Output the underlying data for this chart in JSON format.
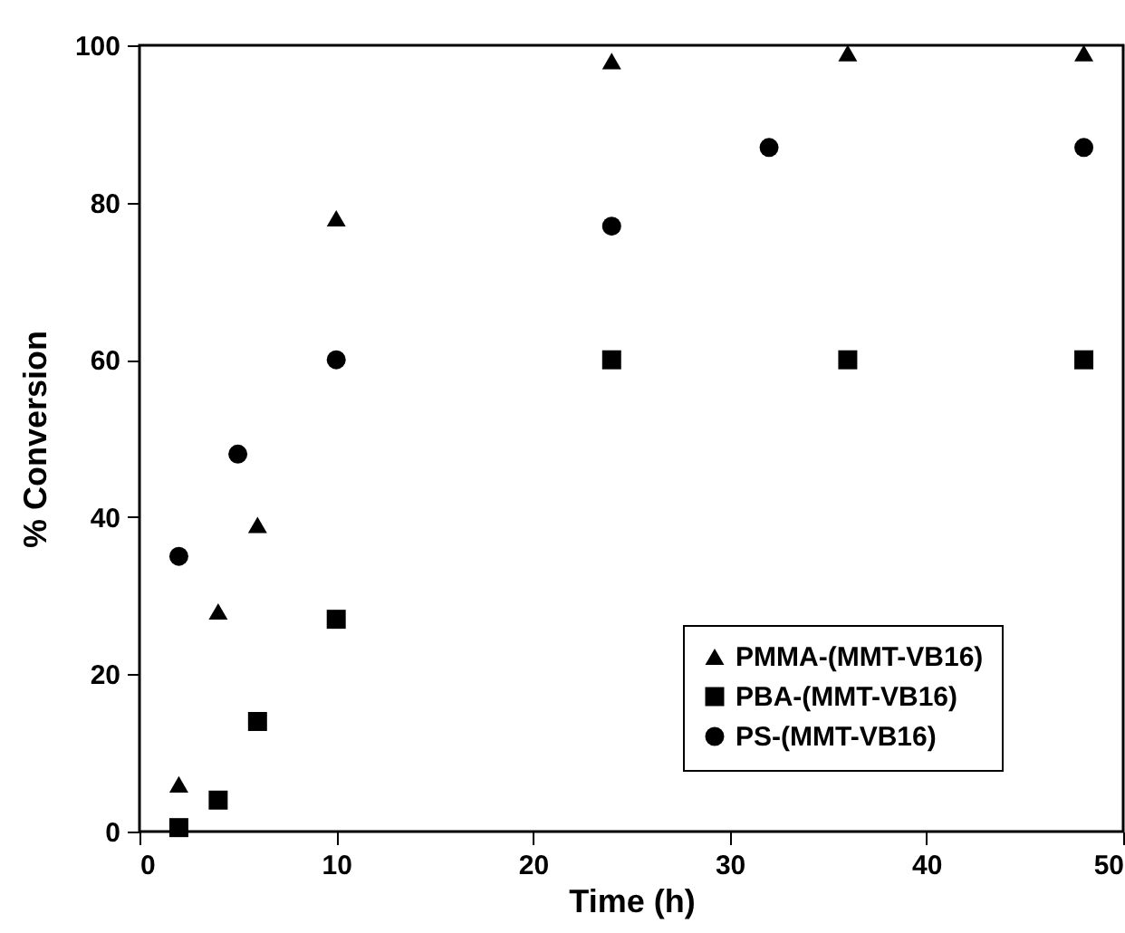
{
  "chart_data": {
    "type": "scatter",
    "xlabel": "Time (h)",
    "ylabel": "% Conversion",
    "xlim": [
      0,
      50
    ],
    "xticks": [
      0,
      10,
      20,
      30,
      40,
      50
    ],
    "ylim": [
      0,
      100
    ],
    "yticks": [
      0,
      20,
      40,
      60,
      80,
      100
    ],
    "grid": false,
    "legend": "bottom right",
    "series": [
      {
        "name": "PMMA-(MMT-VB16)",
        "color": "#000000",
        "marker": "triangle",
        "x": [
          2,
          4,
          6,
          10,
          24,
          36,
          48
        ],
        "values": [
          6,
          28,
          39,
          78,
          98,
          99,
          99
        ]
      },
      {
        "name": "PBA-(MMT-VB16)",
        "color": "#000000",
        "marker": "square",
        "x": [
          2,
          4,
          6,
          10,
          24,
          36,
          48
        ],
        "values": [
          0.5,
          4,
          14,
          27,
          60,
          60,
          60
        ]
      },
      {
        "name": "PS-(MMT-VB16)",
        "color": "#000000",
        "marker": "circle",
        "x": [
          2,
          5,
          10,
          24,
          32,
          48
        ],
        "values": [
          35,
          48,
          60,
          77,
          87,
          87
        ]
      }
    ]
  }
}
